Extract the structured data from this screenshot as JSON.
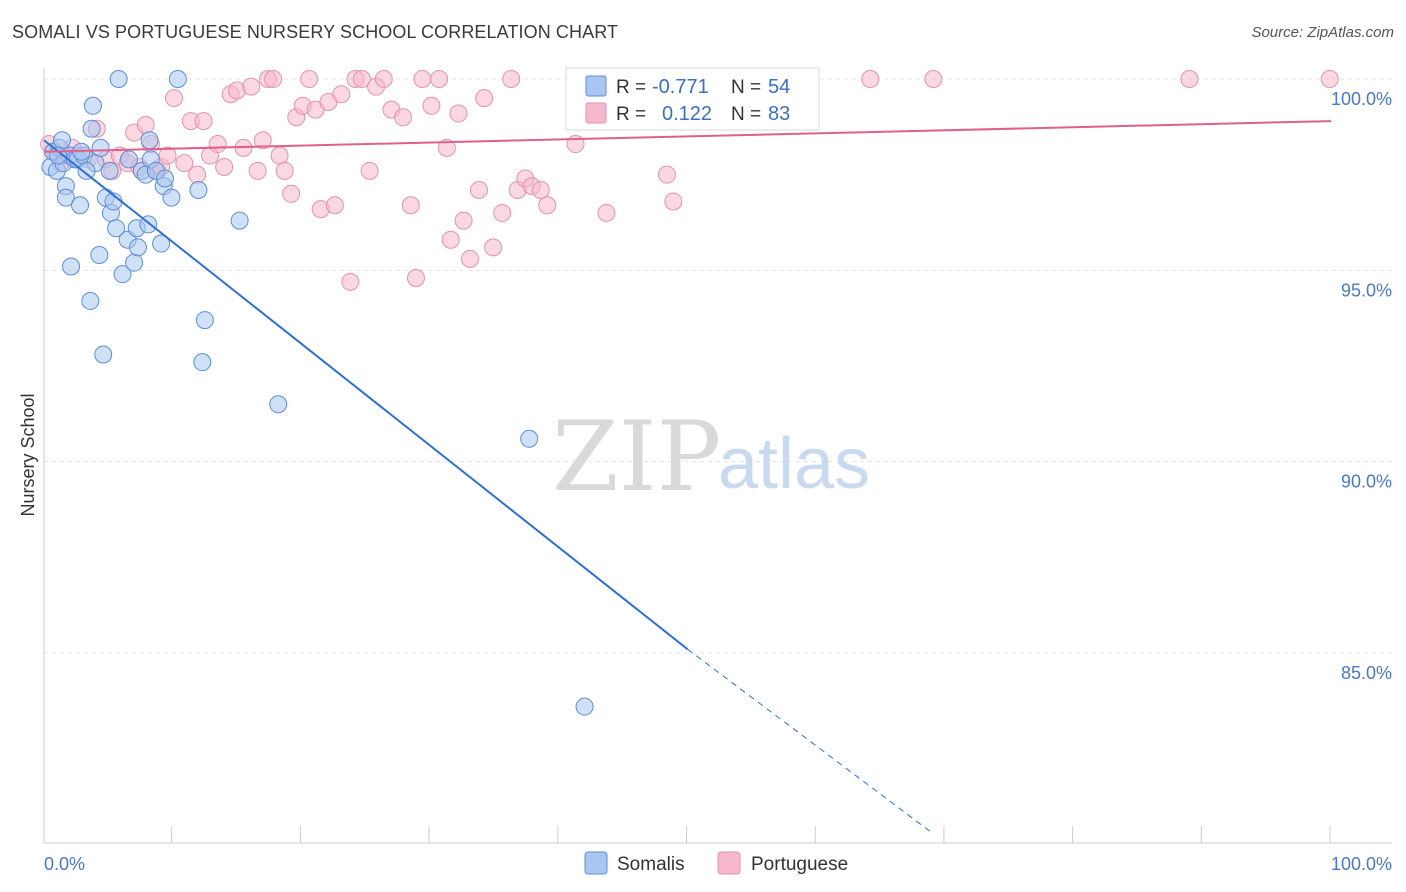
{
  "header": {
    "title": "SOMALI VS PORTUGUESE NURSERY SCHOOL CORRELATION CHART",
    "source": "Source: ZipAtlas.com"
  },
  "watermark": {
    "zip": "ZIP",
    "atlas": "atlas"
  },
  "colors": {
    "somali_fill": "#a9c6f0",
    "somali_stroke": "#5b8fd8",
    "somali_line": "#2e6fd4",
    "portuguese_fill": "#f6b8cb",
    "portuguese_stroke": "#e592ae",
    "portuguese_line": "#e0608a",
    "grid": "#e3e3e3",
    "tick_text": "#4a78c8"
  },
  "legend": {
    "somali": {
      "r_label": "R =",
      "r_value": "-0.771",
      "n_label": "N =",
      "n_value": "54"
    },
    "portuguese": {
      "r_label": "R =",
      "r_value": "0.122",
      "n_label": "N =",
      "n_value": "83"
    }
  },
  "bottom_legend": {
    "somalis": "Somalis",
    "portuguese": "Portuguese"
  },
  "chart_data": {
    "type": "scatter",
    "title": "SOMALI VS PORTUGUESE NURSERY SCHOOL CORRELATION CHART",
    "xlabel": "",
    "ylabel": "Nursery School",
    "xlim": [
      0,
      100
    ],
    "ylim": [
      80.3,
      100.9
    ],
    "x_tick_labels": [
      "0.0%",
      "100.0%"
    ],
    "y_ticks": [
      {
        "value": 100,
        "label": "100.0%"
      },
      {
        "value": 95,
        "label": "95.0%"
      },
      {
        "value": 90,
        "label": "90.0%"
      },
      {
        "value": 85,
        "label": "85.0%"
      }
    ],
    "series": [
      {
        "name": "Somalis",
        "r": -0.771,
        "n": 54,
        "trend": {
          "x0": 0,
          "y0": 98.4,
          "x1": 50,
          "y1": 85.1,
          "dash_to_x": 69,
          "dash_to_y": 80.3
        },
        "points": [
          [
            0.5,
            97.7
          ],
          [
            0.7,
            98.1
          ],
          [
            1.0,
            97.6
          ],
          [
            1.2,
            98.2
          ],
          [
            1.4,
            98.4
          ],
          [
            1.5,
            97.8
          ],
          [
            1.7,
            97.2
          ],
          [
            1.7,
            96.9
          ],
          [
            2.0,
            98.0
          ],
          [
            2.1,
            95.1
          ],
          [
            2.4,
            97.9
          ],
          [
            2.6,
            97.9
          ],
          [
            2.8,
            96.7
          ],
          [
            3.1,
            98.0
          ],
          [
            3.6,
            94.2
          ],
          [
            3.7,
            98.7
          ],
          [
            3.8,
            99.3
          ],
          [
            4.0,
            97.8
          ],
          [
            4.3,
            95.4
          ],
          [
            4.4,
            98.2
          ],
          [
            4.6,
            92.8
          ],
          [
            4.8,
            96.9
          ],
          [
            5.1,
            97.6
          ],
          [
            5.2,
            96.5
          ],
          [
            5.4,
            96.8
          ],
          [
            5.6,
            96.1
          ],
          [
            5.8,
            100.0
          ],
          [
            6.1,
            94.9
          ],
          [
            6.5,
            95.8
          ],
          [
            7.0,
            95.2
          ],
          [
            7.2,
            96.1
          ],
          [
            7.3,
            95.6
          ],
          [
            7.6,
            97.6
          ],
          [
            7.9,
            97.5
          ],
          [
            8.1,
            96.2
          ],
          [
            8.2,
            98.4
          ],
          [
            8.3,
            97.9
          ],
          [
            8.7,
            97.6
          ],
          [
            9.1,
            95.7
          ],
          [
            9.3,
            97.2
          ],
          [
            9.4,
            97.4
          ],
          [
            9.9,
            96.9
          ],
          [
            10.4,
            100.0
          ],
          [
            12.0,
            97.1
          ],
          [
            12.3,
            92.6
          ],
          [
            12.5,
            93.7
          ],
          [
            15.2,
            96.3
          ],
          [
            18.2,
            91.5
          ],
          [
            37.7,
            90.6
          ],
          [
            42.0,
            83.6
          ],
          [
            1.1,
            98.0
          ],
          [
            2.9,
            98.1
          ],
          [
            6.6,
            97.9
          ],
          [
            3.3,
            97.6
          ]
        ]
      },
      {
        "name": "Portuguese",
        "r": 0.122,
        "n": 83,
        "trend": {
          "x0": 0,
          "y0": 98.1,
          "x1": 100,
          "y1": 98.9
        },
        "points": [
          [
            0.4,
            98.3
          ],
          [
            0.8,
            98.1
          ],
          [
            1.3,
            97.8
          ],
          [
            1.6,
            98.0
          ],
          [
            2.2,
            98.2
          ],
          [
            2.6,
            98.0
          ],
          [
            3.4,
            97.9
          ],
          [
            4.1,
            98.7
          ],
          [
            4.8,
            97.9
          ],
          [
            5.3,
            97.6
          ],
          [
            5.9,
            98.0
          ],
          [
            6.5,
            97.8
          ],
          [
            7.0,
            98.6
          ],
          [
            7.4,
            97.7
          ],
          [
            7.9,
            98.8
          ],
          [
            8.3,
            98.3
          ],
          [
            8.8,
            97.6
          ],
          [
            9.1,
            97.7
          ],
          [
            9.6,
            98.0
          ],
          [
            10.1,
            99.5
          ],
          [
            10.9,
            97.8
          ],
          [
            11.4,
            98.9
          ],
          [
            11.9,
            97.5
          ],
          [
            12.4,
            98.9
          ],
          [
            12.9,
            98.0
          ],
          [
            13.5,
            98.3
          ],
          [
            14.0,
            97.7
          ],
          [
            14.5,
            99.6
          ],
          [
            15.0,
            99.7
          ],
          [
            15.5,
            98.2
          ],
          [
            16.1,
            99.8
          ],
          [
            16.6,
            97.6
          ],
          [
            17.0,
            98.4
          ],
          [
            17.4,
            100.0
          ],
          [
            17.8,
            100.0
          ],
          [
            18.3,
            98.0
          ],
          [
            18.7,
            97.6
          ],
          [
            19.2,
            97.0
          ],
          [
            19.6,
            99.0
          ],
          [
            20.1,
            99.3
          ],
          [
            20.6,
            100.0
          ],
          [
            21.1,
            99.2
          ],
          [
            21.5,
            96.6
          ],
          [
            22.1,
            99.4
          ],
          [
            22.6,
            96.7
          ],
          [
            23.1,
            99.6
          ],
          [
            23.8,
            94.7
          ],
          [
            24.2,
            100.0
          ],
          [
            24.7,
            100.0
          ],
          [
            25.3,
            97.6
          ],
          [
            25.8,
            99.8
          ],
          [
            26.4,
            100.0
          ],
          [
            27.0,
            99.2
          ],
          [
            27.9,
            99.0
          ],
          [
            28.5,
            96.7
          ],
          [
            28.9,
            94.8
          ],
          [
            29.4,
            100.0
          ],
          [
            30.1,
            99.3
          ],
          [
            30.7,
            100.0
          ],
          [
            31.3,
            98.2
          ],
          [
            31.6,
            95.8
          ],
          [
            32.2,
            99.1
          ],
          [
            32.6,
            96.3
          ],
          [
            33.1,
            95.3
          ],
          [
            33.8,
            97.1
          ],
          [
            34.2,
            99.5
          ],
          [
            34.9,
            95.6
          ],
          [
            35.6,
            96.5
          ],
          [
            36.3,
            100.0
          ],
          [
            36.8,
            97.1
          ],
          [
            37.4,
            97.4
          ],
          [
            37.9,
            97.2
          ],
          [
            38.6,
            97.1
          ],
          [
            39.1,
            96.7
          ],
          [
            41.3,
            98.3
          ],
          [
            43.7,
            96.5
          ],
          [
            48.0,
            100.0
          ],
          [
            48.4,
            97.5
          ],
          [
            48.9,
            96.8
          ],
          [
            64.2,
            100.0
          ],
          [
            69.1,
            100.0
          ],
          [
            89.0,
            100.0
          ],
          [
            99.9,
            100.0
          ]
        ]
      }
    ]
  }
}
